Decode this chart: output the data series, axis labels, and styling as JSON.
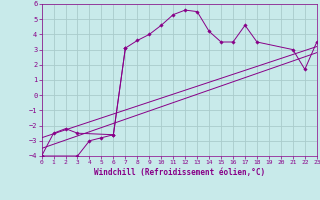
{
  "xlabel": "Windchill (Refroidissement éolien,°C)",
  "bg_color": "#c8eaea",
  "grid_color": "#aacccc",
  "line_color": "#880088",
  "marker_color": "#880088",
  "xlim": [
    0,
    23
  ],
  "ylim": [
    -4,
    6
  ],
  "xticks": [
    0,
    1,
    2,
    3,
    4,
    5,
    6,
    7,
    8,
    9,
    10,
    11,
    12,
    13,
    14,
    15,
    16,
    17,
    18,
    19,
    20,
    21,
    22,
    23
  ],
  "yticks": [
    -4,
    -3,
    -2,
    -1,
    0,
    1,
    2,
    3,
    4,
    5,
    6
  ],
  "series1_x": [
    0,
    1,
    2,
    3,
    6,
    7,
    8,
    9,
    10,
    11,
    12,
    13,
    14,
    15,
    16,
    17,
    18,
    21,
    22,
    23
  ],
  "series1_y": [
    -4,
    -2.5,
    -2.2,
    -2.5,
    -2.6,
    3.1,
    3.6,
    4.0,
    4.6,
    5.3,
    5.6,
    5.5,
    4.2,
    3.5,
    3.5,
    4.6,
    3.5,
    3.0,
    1.7,
    3.5
  ],
  "series2_x": [
    0,
    3,
    4,
    5,
    6,
    7
  ],
  "series2_y": [
    -4,
    -4.0,
    -3.0,
    -2.8,
    -2.6,
    3.1
  ],
  "series3_x": [
    0,
    23
  ],
  "series3_y": [
    -3.5,
    2.8
  ],
  "series4_x": [
    0,
    23
  ],
  "series4_y": [
    -2.8,
    3.2
  ]
}
